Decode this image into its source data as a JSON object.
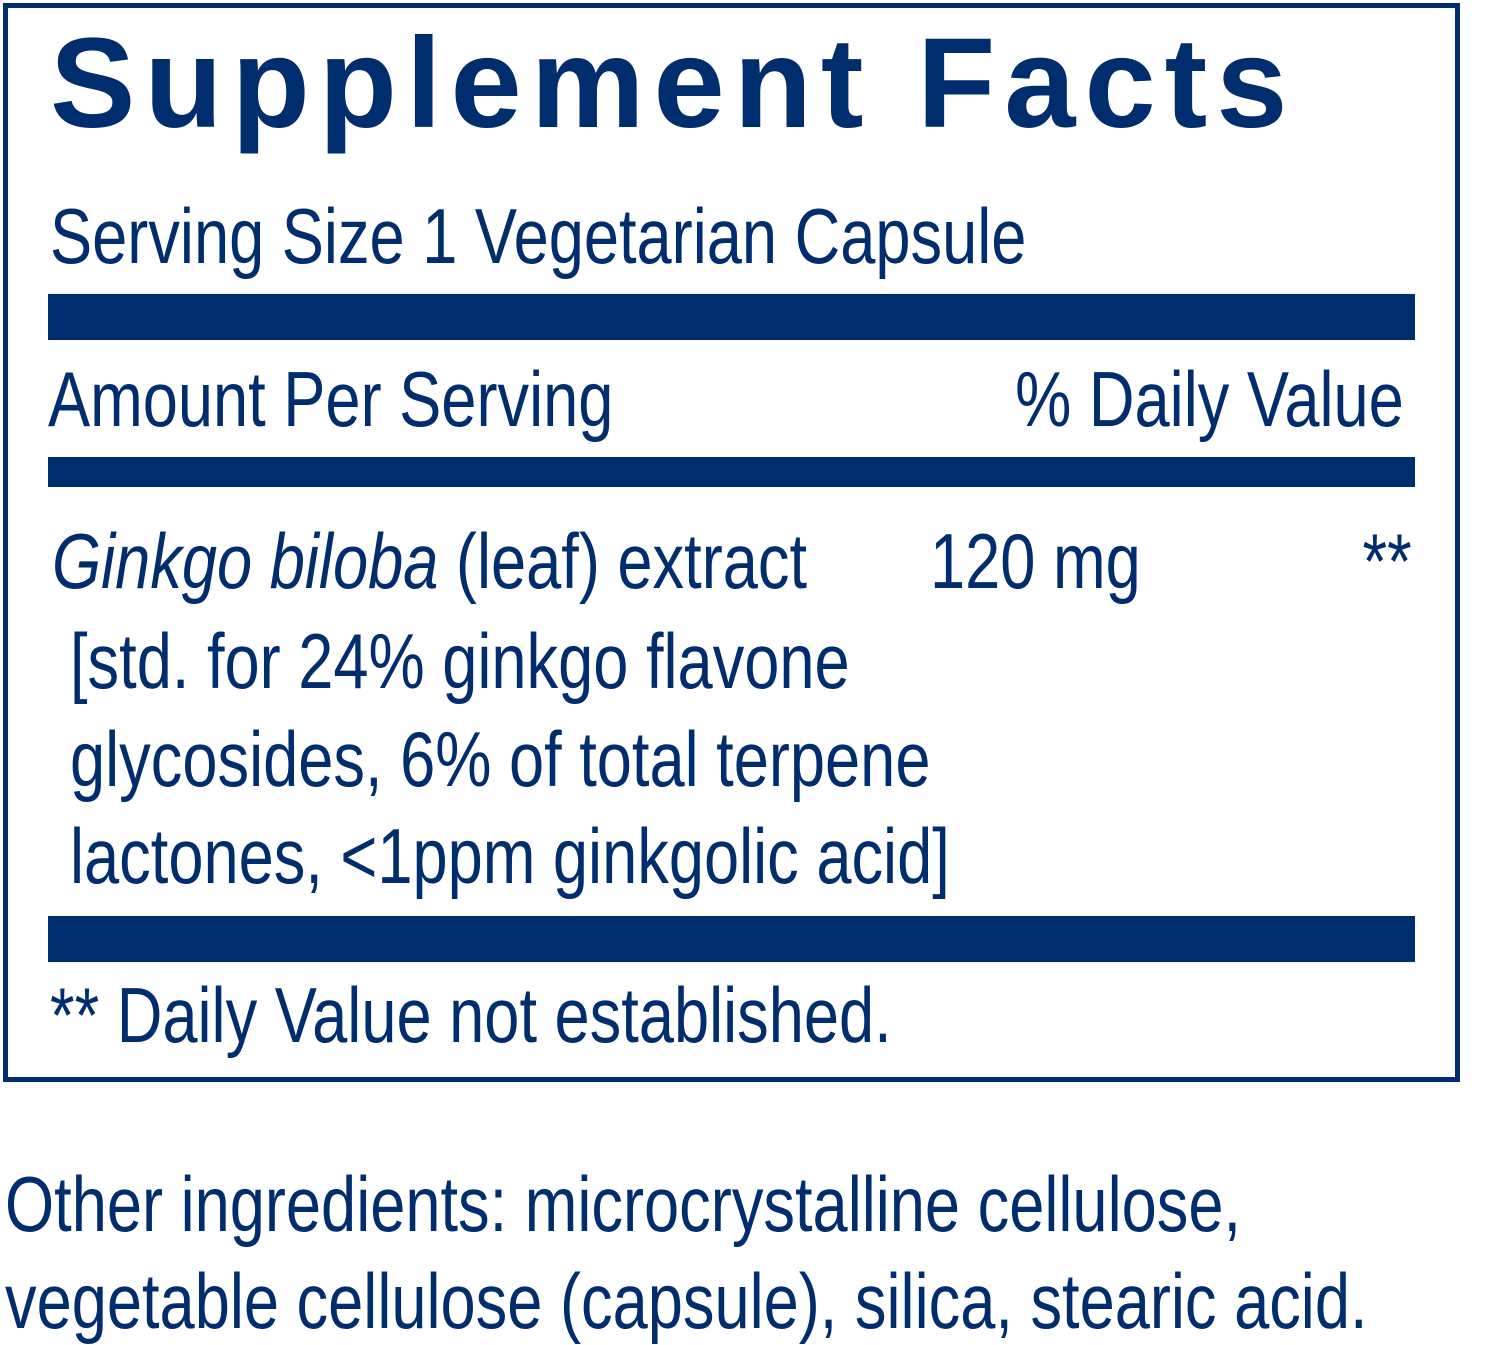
{
  "label": {
    "title": "Supplement Facts",
    "serving_size": "Serving Size 1 Vegetarian Capsule",
    "amount_per_serving": "Amount Per Serving",
    "daily_value_header": "% Daily Value",
    "ingredient": {
      "name_italic": "Ginkgo biloba",
      "name_rest": " (leaf) extract",
      "amount": "120 mg",
      "daily_value": "**",
      "details": [
        "[std. for  24% ginkgo flavone",
        "glycosides, 6% of total terpene",
        "lactones, <1ppm ginkgolic acid]"
      ]
    },
    "footnote": "** Daily Value not established."
  },
  "other_ingredients": [
    "Other ingredients: microcrystalline cellulose,",
    "vegetable cellulose (capsule), silica, stearic acid."
  ],
  "colors": {
    "brand_navy": "#002d6e"
  }
}
